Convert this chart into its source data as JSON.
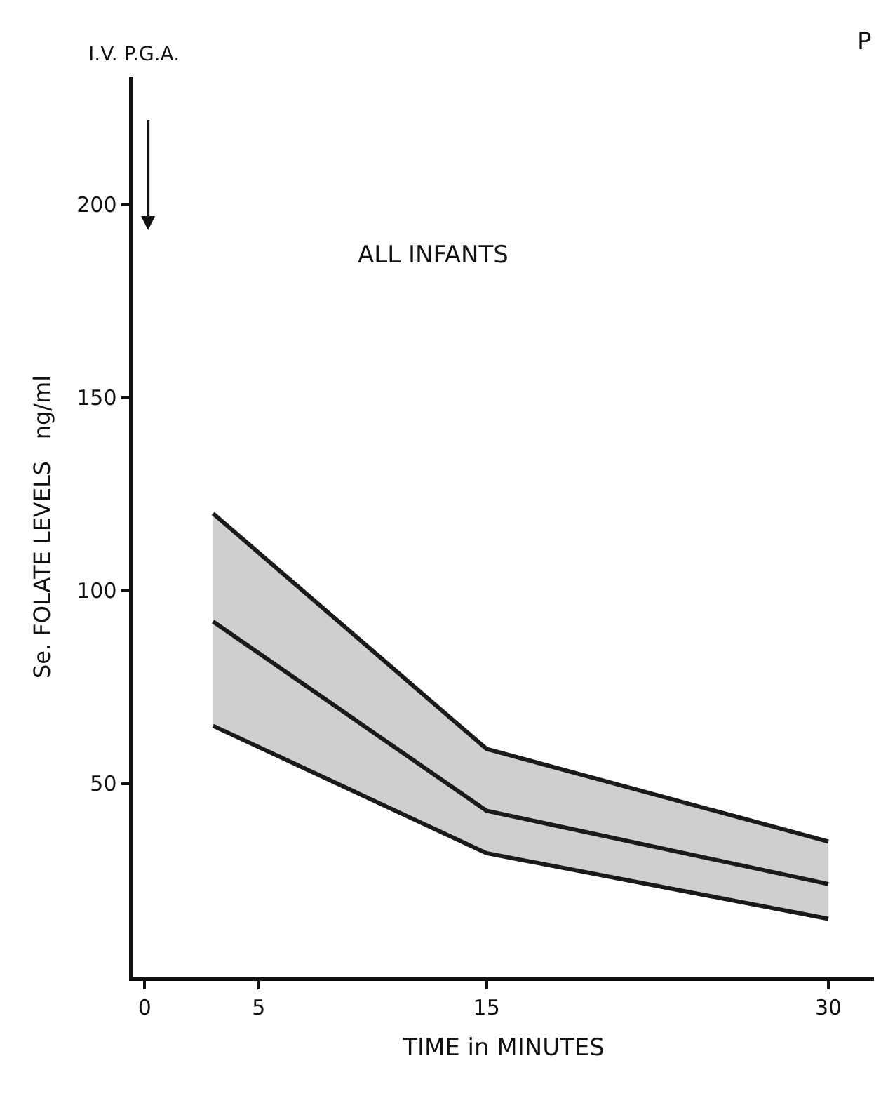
{
  "chart_data": {
    "type": "line",
    "title": "ALL INFANTS",
    "xlabel": "TIME in MINUTES",
    "ylabel": "Se. FOLATE LEVELS   ng/ml",
    "x": [
      3,
      15,
      30
    ],
    "series": [
      {
        "color": "#1a1a1a",
        "values": [
          120,
          59,
          35
        ]
      },
      {
        "color": "#1a1a1a",
        "values": [
          92,
          43,
          24
        ],
        "lower": [
          65,
          32,
          15
        ],
        "upper": [
          120,
          59,
          35
        ]
      },
      {
        "color": "#1a1a1a",
        "values": [
          65,
          32,
          15
        ]
      }
    ],
    "xlim": [
      -0.5,
      32
    ],
    "ylim": [
      0,
      233
    ],
    "xticks": [
      0,
      5,
      15,
      30
    ],
    "yticks": [
      50,
      100,
      150,
      200
    ],
    "marker": "none",
    "line_style": "solid",
    "annotations": [
      "I.V. P.G.A.",
      "P"
    ]
  }
}
